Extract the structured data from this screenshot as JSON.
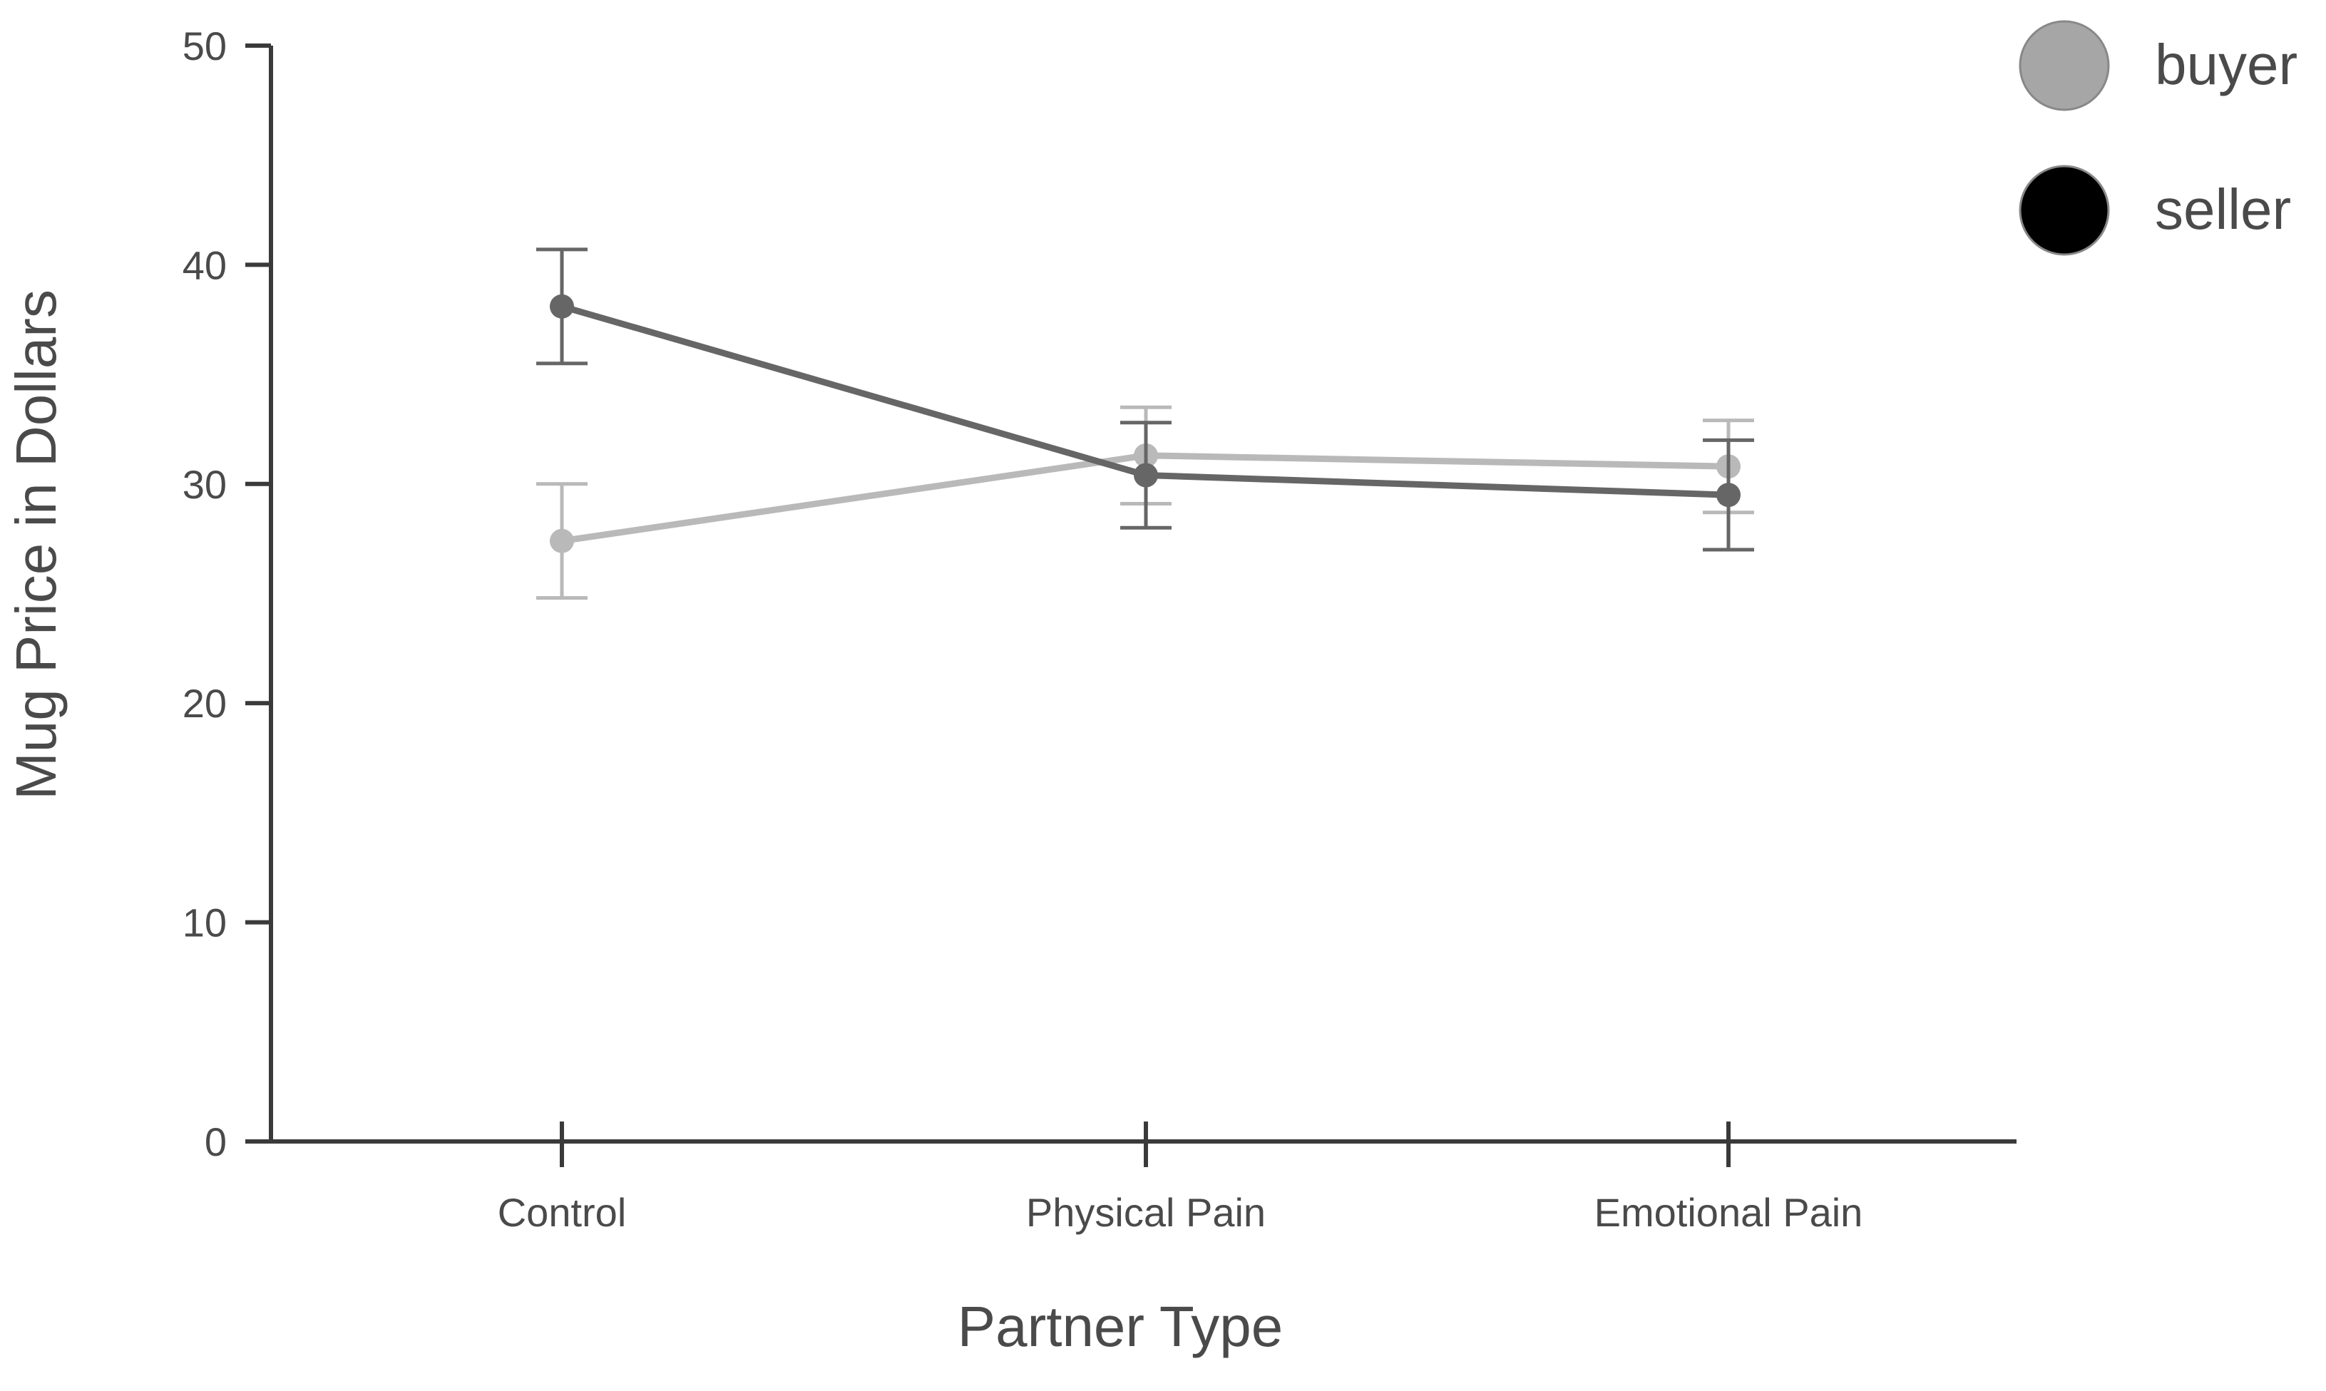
{
  "chart_data": {
    "type": "line",
    "title": "",
    "xlabel": "Partner Type",
    "ylabel": "Mug Price in Dollars",
    "categories": [
      "Control",
      "Physical Pain",
      "Emotional Pain"
    ],
    "ylim": [
      0,
      50
    ],
    "yticks": [
      0,
      10,
      20,
      30,
      40,
      50
    ],
    "grid": false,
    "legend_position": "top-right",
    "series": [
      {
        "name": "buyer",
        "values": [
          27.4,
          31.3,
          30.8
        ],
        "errors": [
          2.6,
          2.2,
          2.1
        ],
        "line_color": "#b9b9b9",
        "legend_color": "#a6a6a6"
      },
      {
        "name": "seller",
        "values": [
          38.1,
          30.4,
          29.5
        ],
        "errors": [
          2.6,
          2.4,
          2.5
        ],
        "line_color": "#666666",
        "legend_color": "#000000"
      }
    ]
  }
}
